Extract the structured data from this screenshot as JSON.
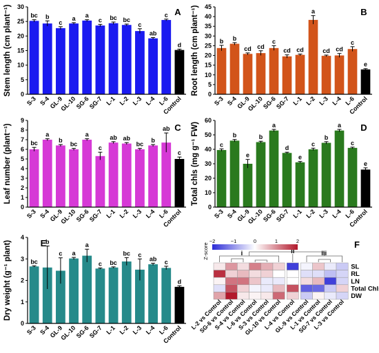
{
  "colors": {
    "blue": "#1a1af0",
    "orange": "#d2541a",
    "magenta": "#d639d6",
    "green": "#2a7a1e",
    "teal": "#268a8a",
    "control": "#000000",
    "heat_low": "#2b2bd6",
    "heat_high": "#b2182b"
  },
  "chart_data": [
    {
      "id": "A",
      "type": "bar",
      "panel_label": "A",
      "categories": [
        "S-3",
        "S-4",
        "GL-9",
        "GL-10",
        "SG-6",
        "SG-7",
        "L-1",
        "L-2",
        "L-3",
        "L-4",
        "L-6",
        "Control"
      ],
      "values": [
        25.2,
        24.3,
        22.7,
        24.3,
        25.3,
        23.6,
        24.4,
        23.8,
        21.7,
        19.2,
        25.5,
        15.2
      ],
      "errors": [
        0.4,
        0.9,
        0.5,
        0.3,
        0.3,
        0.4,
        0.4,
        0.3,
        0.8,
        0.3,
        0.3,
        0.3
      ],
      "letters": [
        "bc",
        "b",
        "c",
        "a",
        "a",
        "c",
        "bc",
        "bc",
        "c",
        "ab",
        "c",
        "d"
      ],
      "ylabel": "Stem length (cm plant⁻¹)",
      "ylim": [
        0,
        30
      ],
      "yticks": [
        0,
        5,
        10,
        15,
        20,
        25,
        30
      ],
      "color": "blue"
    },
    {
      "id": "B",
      "type": "bar",
      "panel_label": "B",
      "categories": [
        "S-3",
        "S-4",
        "GL-9",
        "GL-10",
        "SG-6",
        "SG-7",
        "L-1",
        "L-2",
        "L-3",
        "L-4",
        "L-6",
        "Control"
      ],
      "values": [
        23.8,
        26.0,
        20.8,
        21.2,
        23.8,
        19.5,
        20.3,
        38.3,
        19.8,
        20.0,
        23.3,
        12.8
      ],
      "errors": [
        1.4,
        0.6,
        0.5,
        1.2,
        1.2,
        0.8,
        0.4,
        2.2,
        0.4,
        1.0,
        1.2,
        0.4
      ],
      "letters": [
        "b",
        "b",
        "cd",
        "cd",
        "c",
        "cd",
        "cd",
        "a",
        "cd",
        "cd",
        "c",
        "e"
      ],
      "ylabel": "Root length (cm plant⁻¹)",
      "ylim": [
        0,
        45
      ],
      "yticks": [
        0,
        5,
        10,
        15,
        20,
        25,
        30,
        35,
        40,
        45
      ],
      "color": "orange"
    },
    {
      "id": "C",
      "type": "bar",
      "panel_label": "C",
      "categories": [
        "S-3",
        "S-4",
        "GL-9",
        "GL-10",
        "SG-6",
        "SG-7",
        "L-1",
        "L-2",
        "L-3",
        "L-4",
        "L-6",
        "Control"
      ],
      "values": [
        6.0,
        7.0,
        6.4,
        6.0,
        7.0,
        5.3,
        6.7,
        6.6,
        6.0,
        6.4,
        6.7,
        5.0
      ],
      "errors": [
        0.2,
        0.1,
        0.1,
        0.1,
        0.1,
        0.4,
        0.1,
        0.1,
        0.1,
        0.1,
        1.0,
        0.2
      ],
      "letters": [
        "bc",
        "a",
        "b",
        "bc",
        "a",
        "c",
        "ab",
        "ab",
        "bc",
        "b",
        "ab",
        "c"
      ],
      "ylabel": "Leaf number (plant⁻¹)",
      "ylim": [
        0,
        9
      ],
      "yticks": [
        0,
        1,
        2,
        3,
        4,
        5,
        6,
        7,
        8,
        9
      ],
      "color": "magenta"
    },
    {
      "id": "D",
      "type": "bar",
      "panel_label": "D",
      "categories": [
        "S-3",
        "S-4",
        "GL-9",
        "GL-10",
        "SG-6",
        "SG-7",
        "L-1",
        "L-2",
        "L-3",
        "L-4",
        "L-6",
        "Control"
      ],
      "values": [
        39.5,
        46.0,
        30.0,
        45.0,
        53.0,
        37.5,
        31.0,
        40.0,
        44.5,
        53.0,
        41.0,
        26.0
      ],
      "errors": [
        0.8,
        0.8,
        3.0,
        0.6,
        0.8,
        0.5,
        0.6,
        0.8,
        0.8,
        0.8,
        0.5,
        1.2
      ],
      "letters": [
        "c",
        "b",
        "e",
        "b",
        "a",
        "d",
        "e",
        "c",
        "b",
        "a",
        "c",
        "e"
      ],
      "ylabel": "Total chls (mg g⁻¹ FW)",
      "ylim": [
        0,
        60
      ],
      "yticks": [
        0,
        10,
        20,
        30,
        40,
        50,
        60
      ],
      "color": "green"
    },
    {
      "id": "E",
      "type": "bar",
      "panel_label": "E",
      "categories": [
        "S-3",
        "S-4",
        "GL-9",
        "GL-10",
        "SG-6",
        "SG-7",
        "L-1",
        "L-2",
        "L-3",
        "L-4",
        "L-6",
        "Control"
      ],
      "values": [
        2.65,
        2.6,
        2.45,
        3.02,
        3.15,
        2.55,
        2.6,
        2.88,
        2.5,
        2.75,
        2.58,
        1.7
      ],
      "errors": [
        0.03,
        1.0,
        0.6,
        0.05,
        0.3,
        0.03,
        0.03,
        0.18,
        0.5,
        0.05,
        0.08,
        0.05
      ],
      "letters": [
        "bc",
        "b",
        "c",
        "a",
        "a",
        "c",
        "bc",
        "bc",
        "c",
        "ab",
        "c",
        "d"
      ],
      "ylabel": "Dry weight (g⁻¹ plant)",
      "ylim": [
        0,
        4
      ],
      "yticks": [
        0,
        1,
        2,
        3,
        4
      ],
      "color": "teal"
    },
    {
      "id": "F",
      "type": "heatmap",
      "panel_label": "F",
      "rows": [
        "SL",
        "RL",
        "LN",
        "Total Chls",
        "DW"
      ],
      "columns": [
        "L-2 vs Control",
        "SG-6 vs Control",
        "S-4 vs Control",
        "L-6 vs Control",
        "S-3 vs Control",
        "GL-10 vs Control",
        "L-4 vs Control",
        "GL-9 vs Control",
        "L-1 vs Control",
        "SG-7 vs Control",
        "L-3 vs Control"
      ],
      "cluster_labels": [
        "i",
        "ii",
        "iii"
      ],
      "colorbar_label": "Z-score",
      "colorbar_ticks": [
        "−2",
        "−1",
        "0",
        "1",
        "2"
      ],
      "colorbar_range": [
        -2,
        2
      ],
      "values": [
        [
          0.2,
          0.9,
          0.3,
          1.1,
          0.7,
          0.4,
          -1.8,
          -0.1,
          0.5,
          -0.2,
          -0.5
        ],
        [
          1.8,
          0.4,
          0.6,
          0.3,
          0.4,
          0.0,
          0.0,
          -0.3,
          -0.3,
          -0.6,
          -0.4
        ],
        [
          0.1,
          1.2,
          1.2,
          0.5,
          -0.2,
          -0.2,
          0.0,
          0.3,
          0.6,
          -1.8,
          -0.4
        ],
        [
          -0.3,
          1.5,
          0.4,
          -0.1,
          -0.2,
          0.6,
          1.5,
          -1.5,
          -1.4,
          -0.5,
          0.4
        ],
        [
          0.8,
          2.0,
          0.2,
          0.1,
          0.2,
          1.3,
          0.4,
          -0.5,
          0.1,
          -0.2,
          -0.4
        ]
      ]
    }
  ]
}
